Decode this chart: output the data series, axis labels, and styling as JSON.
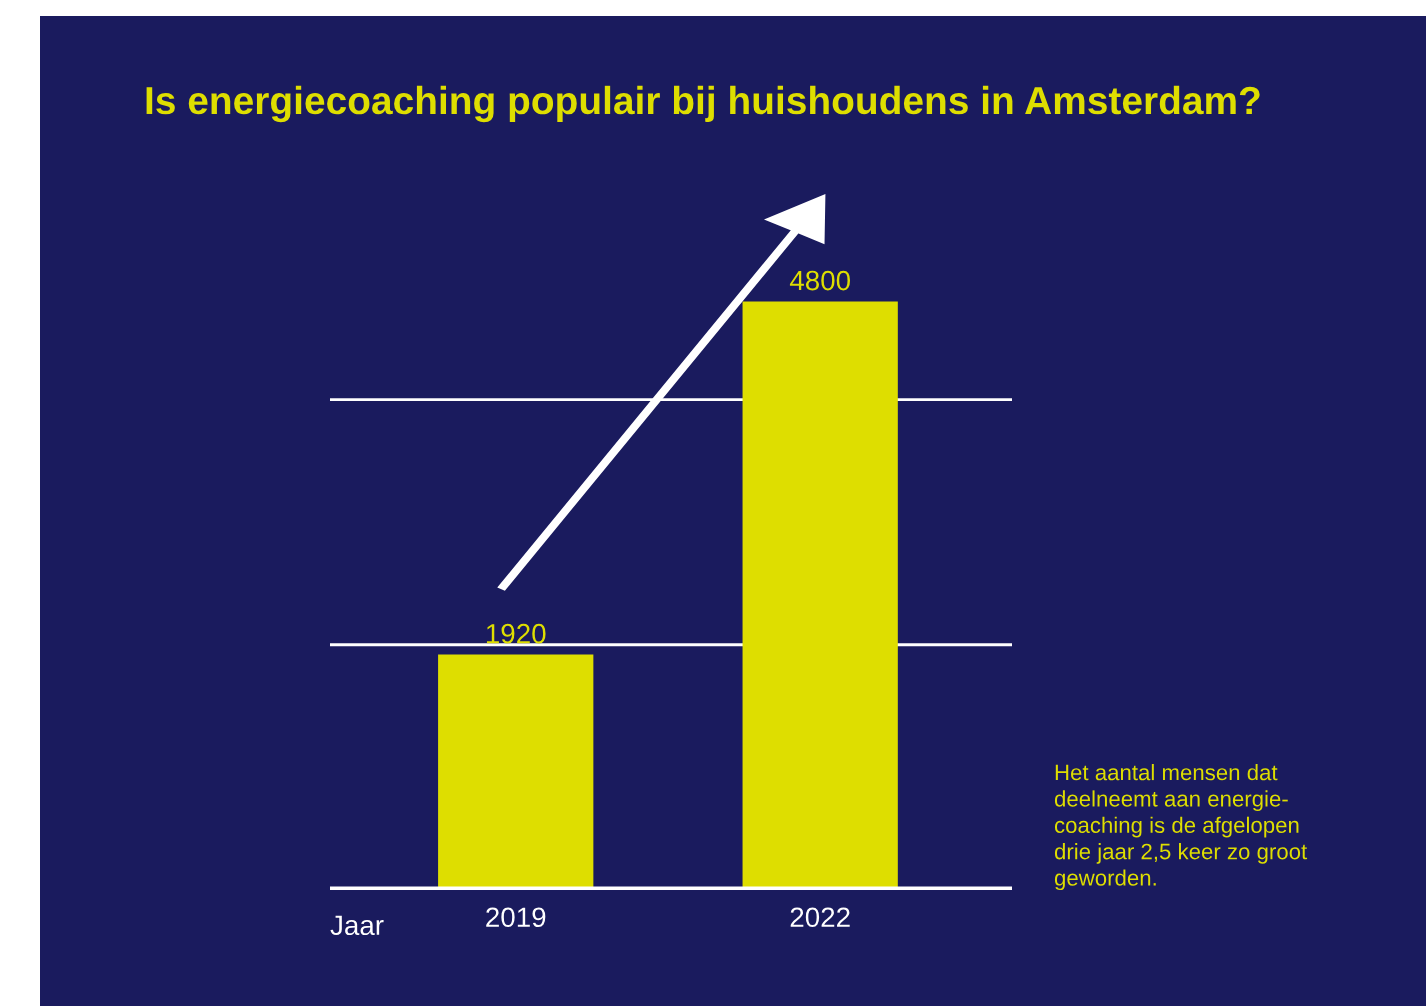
{
  "chart_data": {
    "type": "bar",
    "title": "Is energiecoaching populair bij huishoudens in Amsterdam?",
    "xlabel": "Jaar",
    "categories": [
      "2019",
      "2022"
    ],
    "values": [
      1920,
      4800
    ],
    "color": "#dede00",
    "data_labels": true,
    "ref_lines": [
      {
        "axis": "y",
        "value": 2000,
        "color": "#ffffff"
      },
      {
        "axis": "y",
        "value": 4000,
        "color": "#ffffff"
      }
    ],
    "tick_labels": "x",
    "annotations": [
      "Het aantal mensen dat\ndeelneemt aan energie-\ncoaching is de afgelopen\ndrie jaar 2,5 keer zo groot\ngeworden."
    ]
  }
}
